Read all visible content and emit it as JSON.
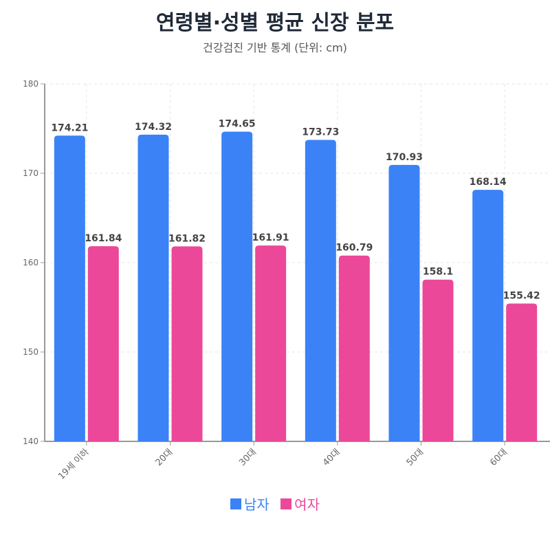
{
  "chart_data": {
    "type": "bar",
    "title": "연령별·성별 평균 신장 분포",
    "subtitle": "건강검진 기반 통계 (단위: cm)",
    "categories": [
      "19세 이하",
      "20대",
      "30대",
      "40대",
      "50대",
      "60대"
    ],
    "series": [
      {
        "name": "남자",
        "color": "#3b82f6",
        "values": [
          174.21,
          174.32,
          174.65,
          173.73,
          170.93,
          168.14
        ]
      },
      {
        "name": "여자",
        "color": "#ec4899",
        "values": [
          161.84,
          161.82,
          161.91,
          160.79,
          158.1,
          155.42
        ]
      }
    ],
    "ylim": [
      140,
      180
    ],
    "yticks": [
      "140",
      "150",
      "160",
      "170",
      "180"
    ],
    "grid": true,
    "legend": "bottom"
  }
}
